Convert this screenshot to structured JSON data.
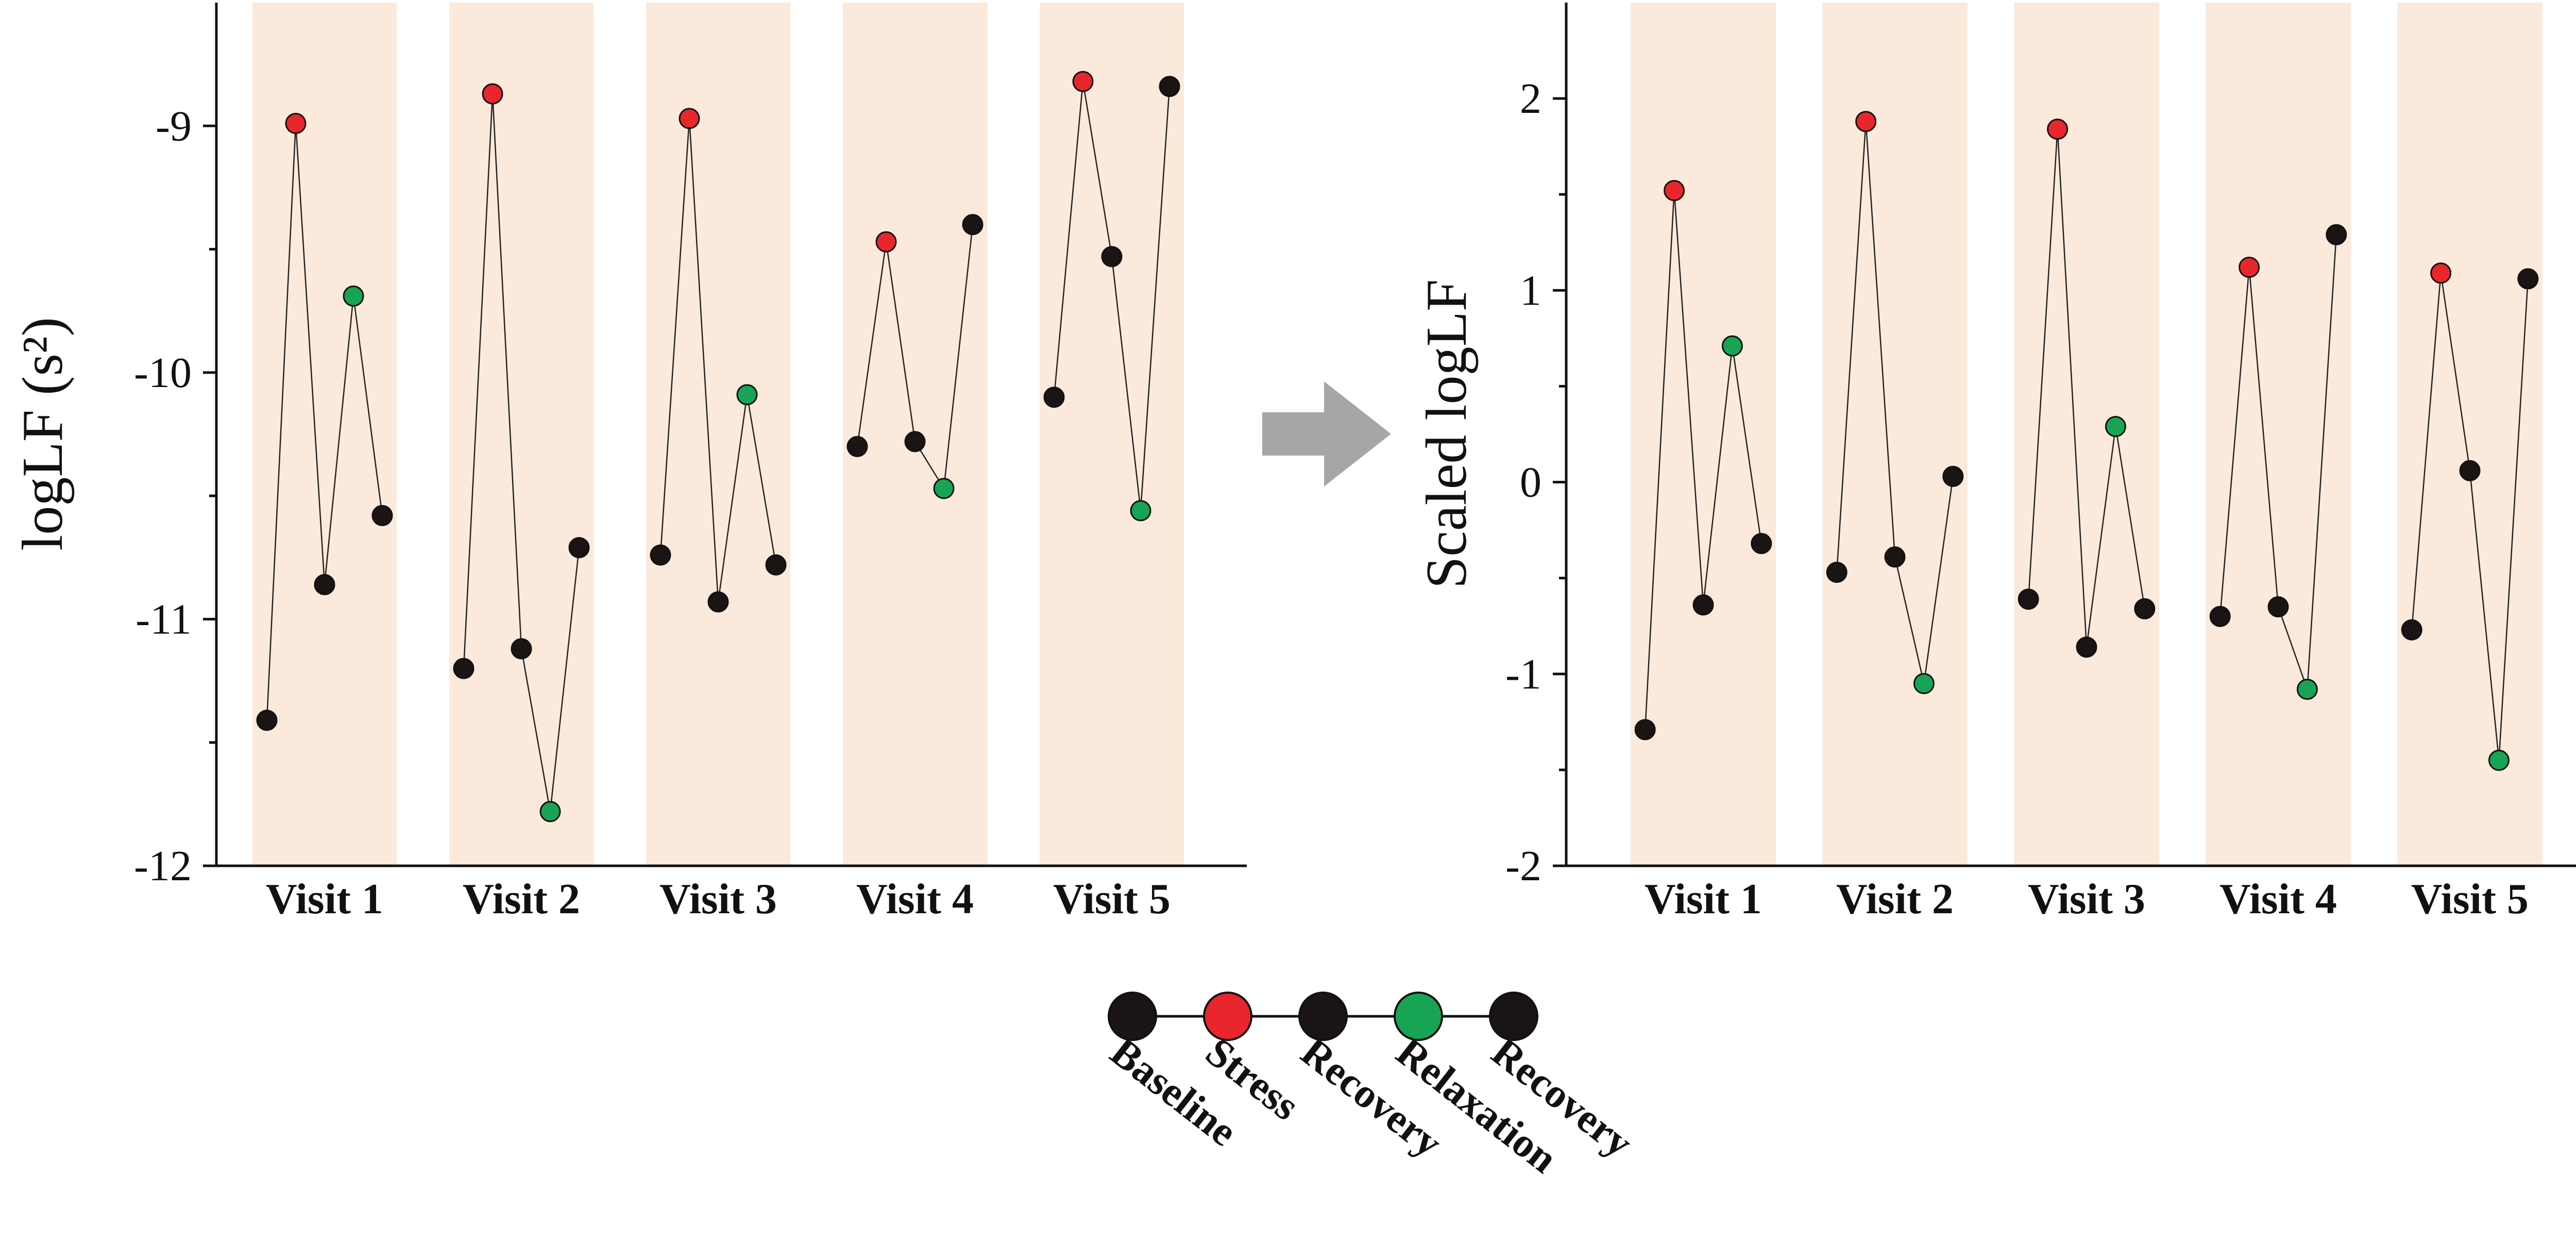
{
  "colors": {
    "band": "#fbeadb",
    "baseline": "#1a1414",
    "stress": "#e8262c",
    "recovery": "#1a1414",
    "relaxation": "#17a454",
    "arrow": "#a6a6a6"
  },
  "legend": {
    "items": [
      {
        "label": "Baseline",
        "color_key": "baseline"
      },
      {
        "label": "Stress",
        "color_key": "stress"
      },
      {
        "label": "Recovery",
        "color_key": "recovery"
      },
      {
        "label": "Relaxation",
        "color_key": "relaxation"
      },
      {
        "label": "Recovery",
        "color_key": "recovery"
      }
    ]
  },
  "chart_data": [
    {
      "type": "line",
      "title": "",
      "ylabel": "logLF (s²)",
      "xlabel": "",
      "ylim": [
        -12,
        -8.5
      ],
      "yticks": [
        -12,
        -11,
        -10,
        -9
      ],
      "categories": [
        "Visit 1",
        "Visit 2",
        "Visit 3",
        "Visit 4",
        "Visit 5"
      ],
      "phases": [
        "Baseline",
        "Stress",
        "Recovery",
        "Relaxation",
        "Recovery"
      ],
      "series": [
        {
          "name": "Visit 1",
          "values": [
            -11.41,
            -8.99,
            -10.86,
            -9.69,
            -10.58
          ]
        },
        {
          "name": "Visit 2",
          "values": [
            -11.2,
            -8.87,
            -11.12,
            -11.78,
            -10.71
          ]
        },
        {
          "name": "Visit 3",
          "values": [
            -10.74,
            -8.97,
            -10.93,
            -10.09,
            -10.78
          ]
        },
        {
          "name": "Visit 4",
          "values": [
            -10.3,
            -9.47,
            -10.28,
            -10.47,
            -9.4
          ]
        },
        {
          "name": "Visit 5",
          "values": [
            -10.1,
            -8.82,
            -9.53,
            -10.56,
            -8.84
          ]
        }
      ]
    },
    {
      "type": "line",
      "title": "",
      "ylabel": "Scaled logLF",
      "xlabel": "",
      "ylim": [
        -2,
        2.5
      ],
      "yticks": [
        -2,
        -1,
        0,
        1,
        2
      ],
      "categories": [
        "Visit 1",
        "Visit 2",
        "Visit 3",
        "Visit 4",
        "Visit 5"
      ],
      "phases": [
        "Baseline",
        "Stress",
        "Recovery",
        "Relaxation",
        "Recovery"
      ],
      "series": [
        {
          "name": "Visit 1",
          "values": [
            -1.29,
            1.52,
            -0.64,
            0.71,
            -0.32
          ]
        },
        {
          "name": "Visit 2",
          "values": [
            -0.47,
            1.88,
            -0.39,
            -1.05,
            0.03
          ]
        },
        {
          "name": "Visit 3",
          "values": [
            -0.61,
            1.84,
            -0.86,
            0.29,
            -0.66
          ]
        },
        {
          "name": "Visit 4",
          "values": [
            -0.7,
            1.12,
            -0.65,
            -1.08,
            1.29
          ]
        },
        {
          "name": "Visit 5",
          "values": [
            -0.77,
            1.09,
            0.06,
            -1.45,
            1.06
          ]
        }
      ]
    }
  ]
}
